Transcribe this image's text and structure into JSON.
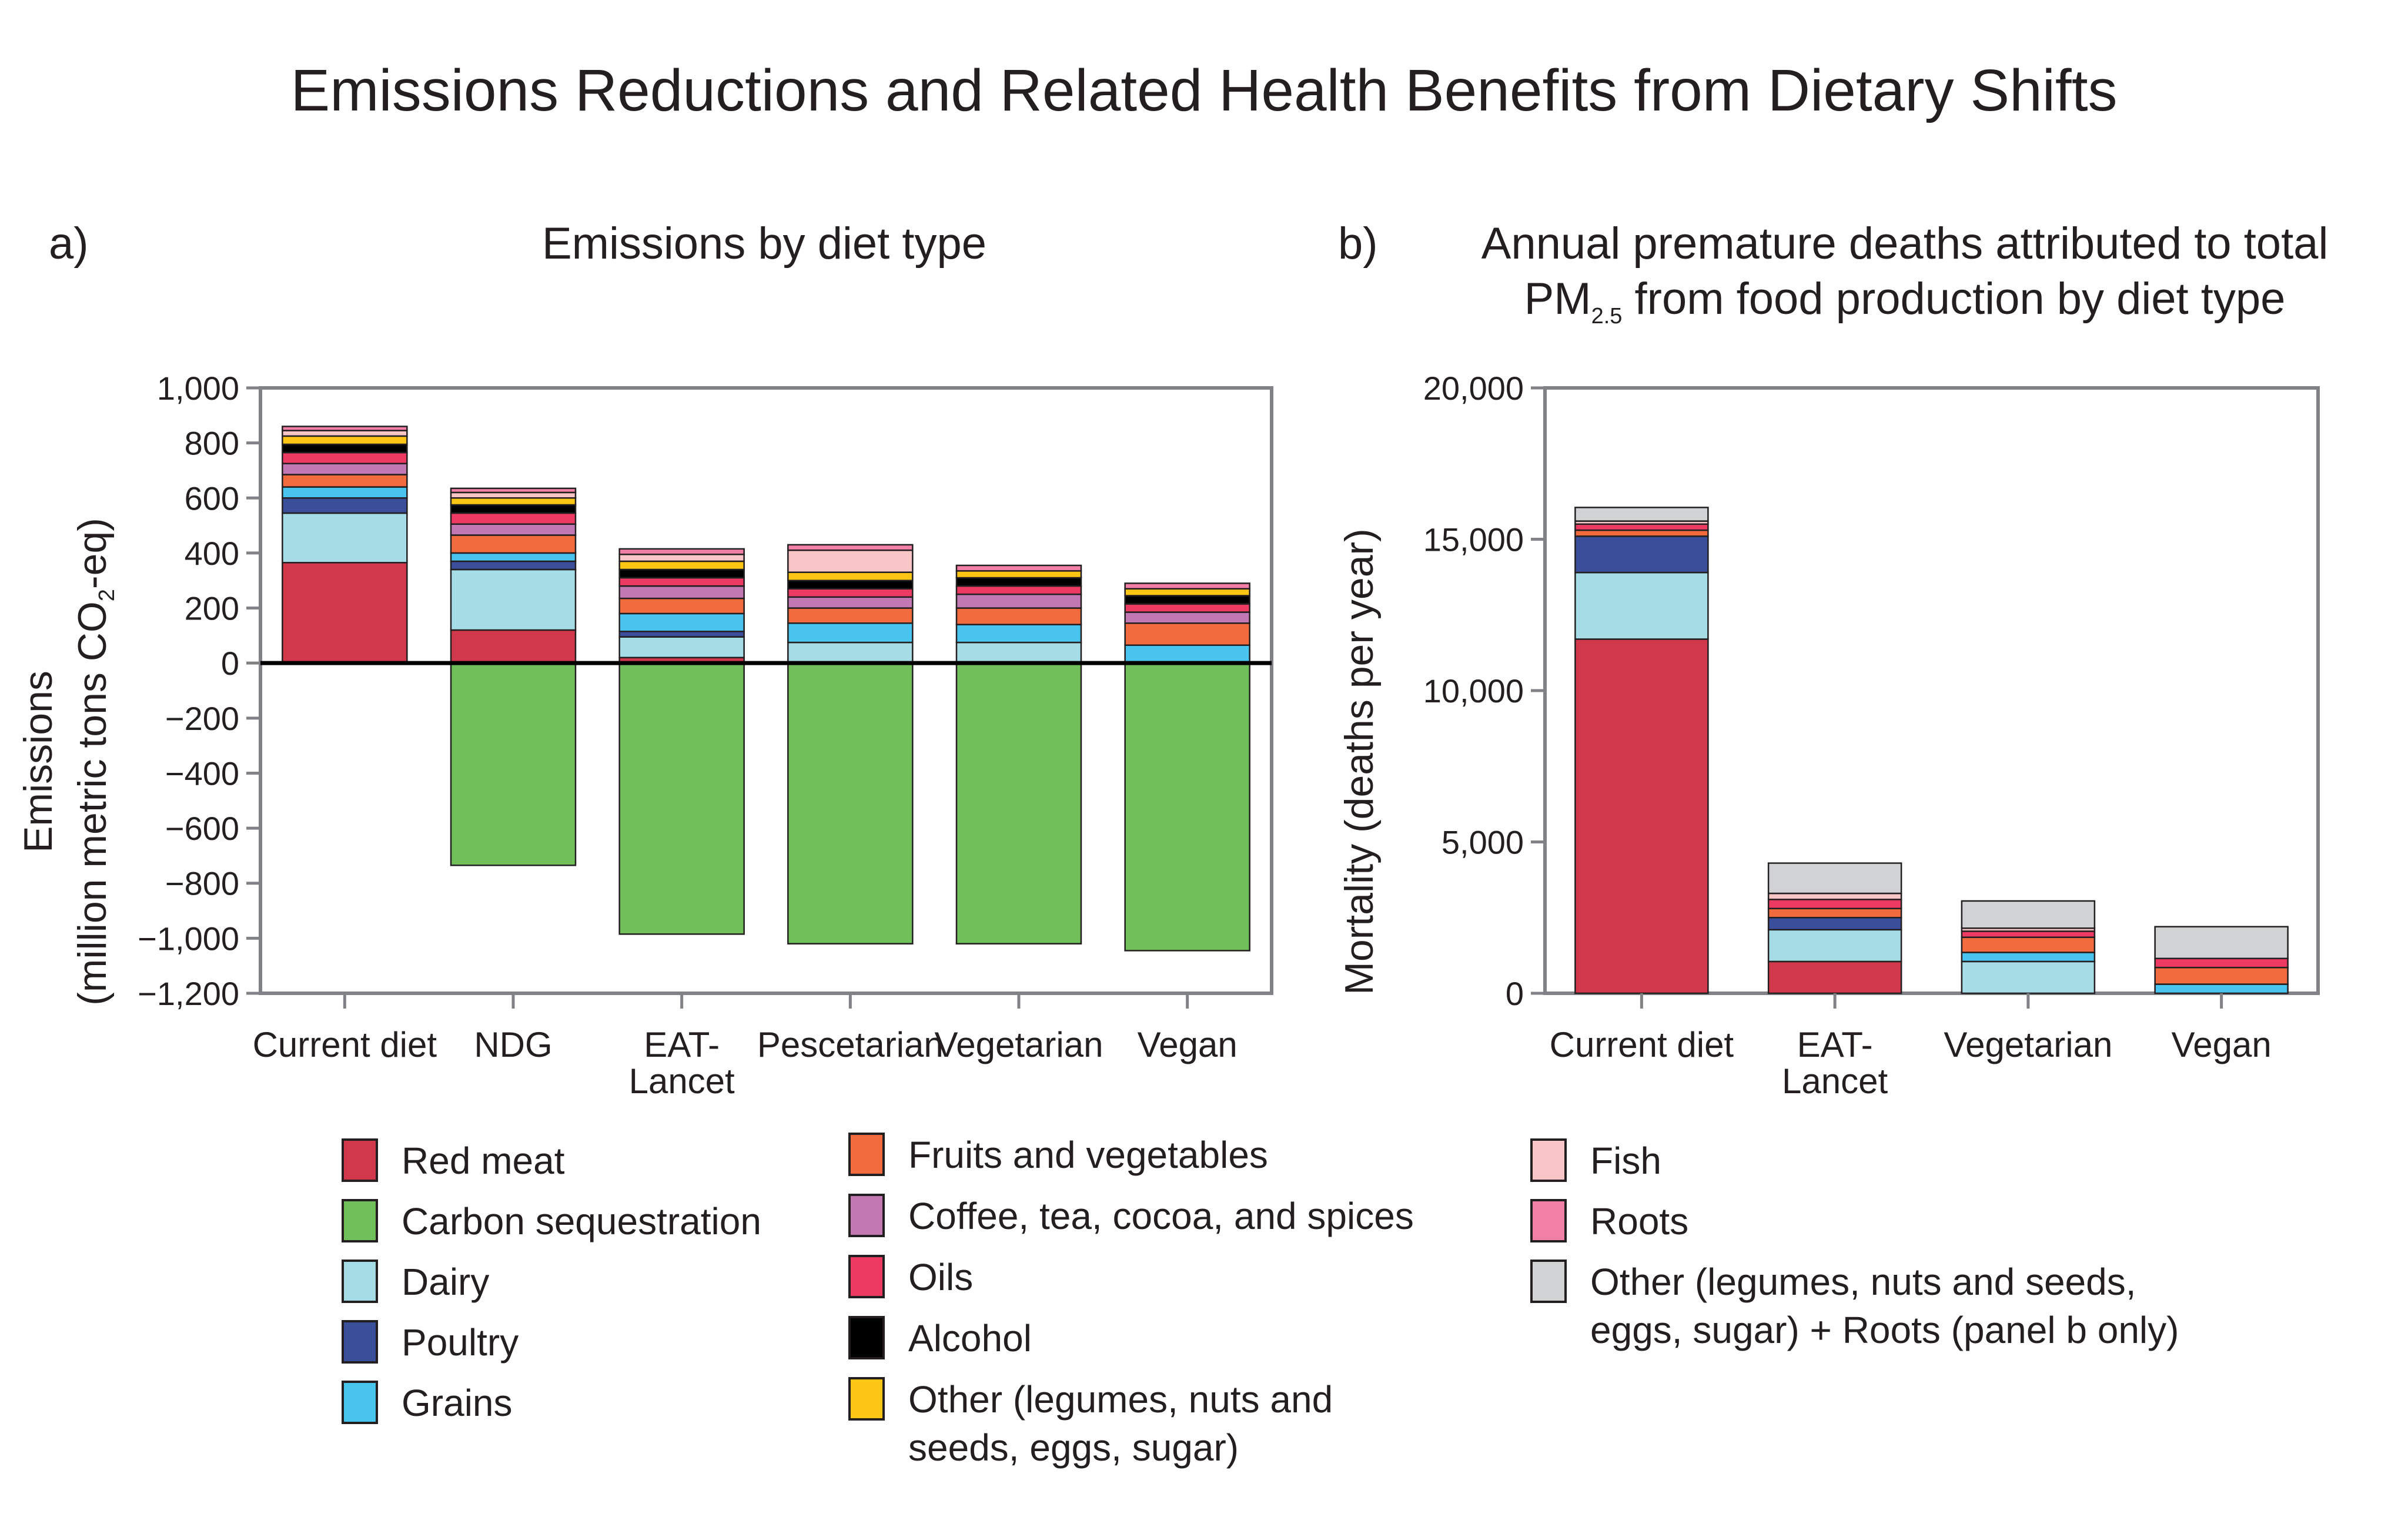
{
  "figure": {
    "title": "Emissions Reductions and Related Health Benefits from Dietary Shifts"
  },
  "colors": {
    "red_meat": "#d2384b",
    "carbon_sequestration": "#70bf5a",
    "dairy": "#a6dce6",
    "poultry": "#3a4e9a",
    "grains": "#49c4ee",
    "fruits_veg": "#f26b3f",
    "coffee": "#c278b2",
    "oils": "#ec3a63",
    "alcohol": "#000000",
    "other": "#fdc514",
    "fish": "#f9c6c8",
    "roots": "#f17fa6",
    "other_roots": "#d0d2d3",
    "axis": "#808285",
    "text": "#231f20"
  },
  "chart_data": [
    {
      "panel": "a)",
      "type": "bar",
      "stacked": true,
      "title": "Emissions by diet type",
      "ylabel": "Emissions",
      "ylabel_line2": {
        "pre": "(million metric tons CO",
        "sub": "2",
        "post": "-eq)"
      },
      "ylim": [
        -1200,
        1000
      ],
      "yticks": [
        "1,000",
        "800",
        "600",
        "400",
        "200",
        "0",
        "−200",
        "−400",
        "−600",
        "−800",
        "−1,000",
        "−1,200"
      ],
      "ytick_values": [
        1000,
        800,
        600,
        400,
        200,
        0,
        -200,
        -400,
        -600,
        -800,
        -1000,
        -1200
      ],
      "zero_line": true,
      "categories": [
        [
          "Current diet"
        ],
        [
          "NDG"
        ],
        [
          "EAT-",
          "Lancet"
        ],
        [
          "Pescetarian"
        ],
        [
          "Vegetarian"
        ],
        [
          "Vegan"
        ]
      ],
      "series": [
        {
          "name": "Red meat",
          "color_key": "red_meat",
          "values": [
            365,
            120,
            20,
            0,
            0,
            0
          ]
        },
        {
          "name": "Dairy",
          "color_key": "dairy",
          "values": [
            180,
            220,
            75,
            75,
            75,
            0
          ]
        },
        {
          "name": "Poultry",
          "color_key": "poultry",
          "values": [
            55,
            30,
            20,
            0,
            0,
            0
          ]
        },
        {
          "name": "Grains",
          "color_key": "grains",
          "values": [
            40,
            30,
            65,
            70,
            65,
            65
          ]
        },
        {
          "name": "Fruits and vegetables",
          "color_key": "fruits_veg",
          "values": [
            45,
            65,
            55,
            55,
            60,
            80
          ]
        },
        {
          "name": "Coffee, tea, cocoa, and spices",
          "color_key": "coffee",
          "values": [
            40,
            40,
            45,
            40,
            50,
            40
          ]
        },
        {
          "name": "Oils",
          "color_key": "oils",
          "values": [
            40,
            40,
            30,
            30,
            30,
            30
          ]
        },
        {
          "name": "Alcohol",
          "color_key": "alcohol",
          "values": [
            30,
            30,
            30,
            30,
            30,
            30
          ]
        },
        {
          "name": "Other (legumes, nuts and seeds, eggs, sugar)",
          "color_key": "other",
          "values": [
            30,
            25,
            30,
            30,
            25,
            25
          ]
        },
        {
          "name": "Fish",
          "color_key": "fish",
          "values": [
            20,
            20,
            25,
            80,
            0,
            0
          ]
        },
        {
          "name": "Roots",
          "color_key": "roots",
          "values": [
            15,
            15,
            20,
            20,
            20,
            20
          ]
        },
        {
          "name": "Carbon sequestration",
          "color_key": "carbon_sequestration",
          "values": [
            0,
            -735,
            -985,
            -1020,
            -1020,
            -1045
          ]
        }
      ]
    },
    {
      "panel": "b)",
      "type": "bar",
      "stacked": true,
      "title_line1": "Annual premature deaths attributed to total",
      "title_line2": {
        "pre": "PM",
        "sub": "2.5",
        "post": " from food production by diet type"
      },
      "ylabel": "Mortality (deaths per year)",
      "ylim": [
        0,
        20000
      ],
      "yticks": [
        "20,000",
        "15,000",
        "10,000",
        "5,000",
        "0"
      ],
      "ytick_values": [
        20000,
        15000,
        10000,
        5000,
        0
      ],
      "categories": [
        [
          "Current diet"
        ],
        [
          "EAT-",
          "Lancet"
        ],
        [
          "Vegetarian"
        ],
        [
          "Vegan"
        ]
      ],
      "series": [
        {
          "name": "Red meat",
          "color_key": "red_meat",
          "values": [
            11700,
            1050,
            0,
            0
          ]
        },
        {
          "name": "Dairy",
          "color_key": "dairy",
          "values": [
            2200,
            1050,
            1050,
            0
          ]
        },
        {
          "name": "Grains",
          "color_key": "grains",
          "values": [
            0,
            0,
            300,
            300
          ]
        },
        {
          "name": "Poultry",
          "color_key": "poultry",
          "values": [
            1200,
            400,
            0,
            0
          ]
        },
        {
          "name": "Fruits and vegetables",
          "color_key": "fruits_veg",
          "values": [
            200,
            300,
            500,
            550
          ]
        },
        {
          "name": "Oils",
          "color_key": "oils",
          "values": [
            200,
            300,
            200,
            300
          ]
        },
        {
          "name": "Fish",
          "color_key": "fish",
          "values": [
            100,
            200,
            100,
            0
          ]
        },
        {
          "name": "Other (legumes, nuts and seeds, eggs, sugar) + Roots (panel b only)",
          "color_key": "other_roots",
          "values": [
            450,
            1000,
            900,
            1050
          ]
        }
      ]
    }
  ],
  "legend": {
    "col1": [
      {
        "label": "Red meat",
        "color_key": "red_meat"
      },
      {
        "label": "Carbon sequestration",
        "color_key": "carbon_sequestration"
      },
      {
        "label": "Dairy",
        "color_key": "dairy"
      },
      {
        "label": "Poultry",
        "color_key": "poultry"
      },
      {
        "label": "Grains",
        "color_key": "grains"
      }
    ],
    "col2": [
      {
        "label": "Fruits and vegetables",
        "color_key": "fruits_veg"
      },
      {
        "label": "Coffee, tea, cocoa, and spices",
        "color_key": "coffee"
      },
      {
        "label": "Oils",
        "color_key": "oils"
      },
      {
        "label": "Alcohol",
        "color_key": "alcohol"
      },
      {
        "label": "Other (legumes, nuts and",
        "label2": "seeds, eggs, sugar)",
        "color_key": "other"
      }
    ],
    "col3": [
      {
        "label": "Fish",
        "color_key": "fish"
      },
      {
        "label": "Roots",
        "color_key": "roots"
      },
      {
        "label": "Other (legumes, nuts and seeds,",
        "label2": "eggs, sugar) + Roots (panel b only)",
        "color_key": "other_roots"
      }
    ]
  }
}
